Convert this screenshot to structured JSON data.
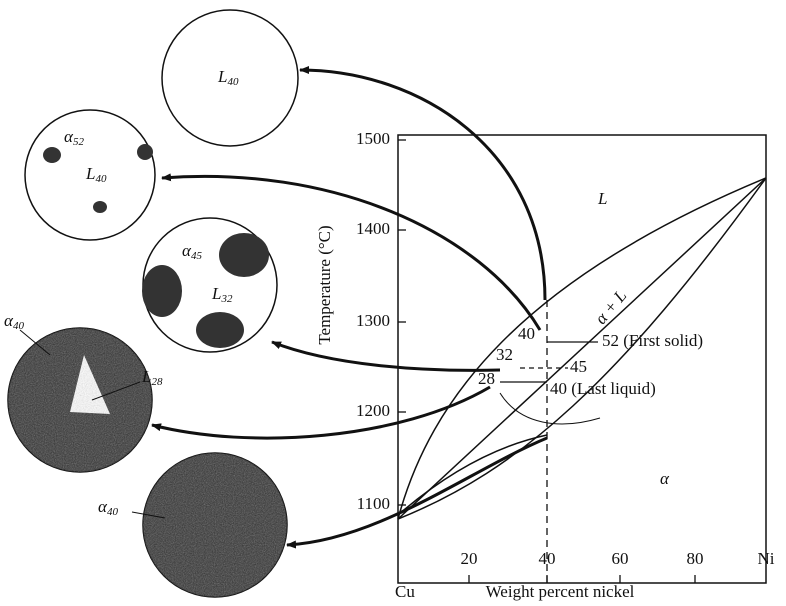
{
  "axes": {
    "y_label": "Temperature (°C)",
    "x_label": "Weight percent nickel",
    "y_ticks": [
      "1500",
      "1400",
      "1300",
      "1200",
      "1100"
    ],
    "x_ticks": [
      "Cu",
      "20",
      "40",
      "60",
      "80",
      "Ni"
    ]
  },
  "regions": [
    "L",
    "α + L",
    "α"
  ],
  "annotations": [
    "40",
    "32",
    "28",
    "45",
    "52 (First solid)",
    "40 (Last liquid)"
  ],
  "microstructures": [
    {
      "labels": [
        {
          "symbol": "L",
          "sub": "40"
        }
      ]
    },
    {
      "labels": [
        {
          "symbol": "α",
          "sub": "52"
        },
        {
          "symbol": "L",
          "sub": "40"
        }
      ]
    },
    {
      "labels": [
        {
          "symbol": "α",
          "sub": "45"
        },
        {
          "symbol": "L",
          "sub": "32"
        }
      ]
    },
    {
      "labels": [
        {
          "symbol": "α",
          "sub": "40"
        },
        {
          "symbol": "L",
          "sub": "28"
        }
      ]
    },
    {
      "labels": [
        {
          "symbol": "α",
          "sub": "40"
        }
      ]
    }
  ]
}
